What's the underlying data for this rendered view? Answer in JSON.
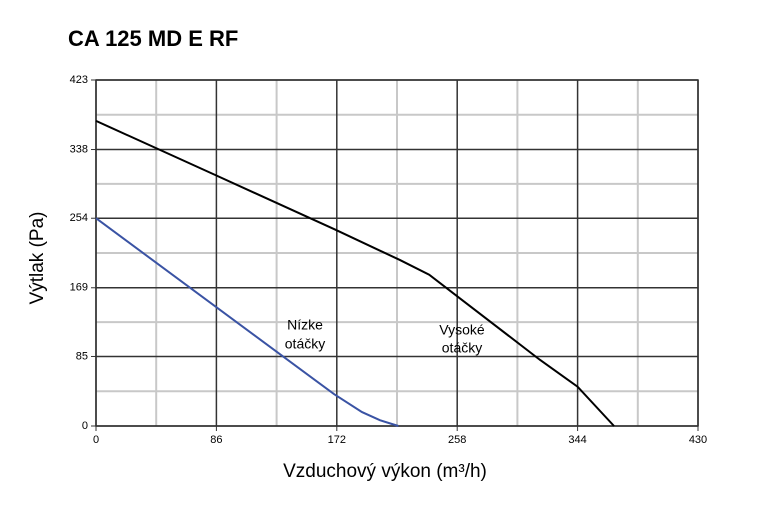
{
  "chart_data": {
    "type": "line",
    "title": "CA 125 MD E RF",
    "xlabel": "Vzduchový výkon (m³/h)",
    "ylabel": "Výtlak (Pa)",
    "xlim": [
      0,
      430
    ],
    "xticks": [
      0,
      86,
      172,
      258,
      344,
      430
    ],
    "ylim": [
      0,
      423
    ],
    "yticks": [
      0,
      85,
      169,
      254,
      338,
      423
    ],
    "grid": true,
    "minor_grid": true,
    "series": [
      {
        "name": "Vysoké otáčky",
        "color": "#000000",
        "x": [
          0,
          85,
          171,
          217,
          238,
          260,
          317,
          344,
          370
        ],
        "values": [
          373,
          307,
          240,
          203,
          185,
          156,
          81,
          48,
          0
        ]
      },
      {
        "name": "Nízke otáčky",
        "color": "#3a53a4",
        "x": [
          0,
          170,
          190,
          203,
          216
        ],
        "values": [
          254,
          39,
          17,
          7,
          0
        ]
      }
    ],
    "annotations": [
      [
        "Nízke",
        "otáčky"
      ],
      [
        "Vysoké",
        "otáčky"
      ]
    ]
  }
}
